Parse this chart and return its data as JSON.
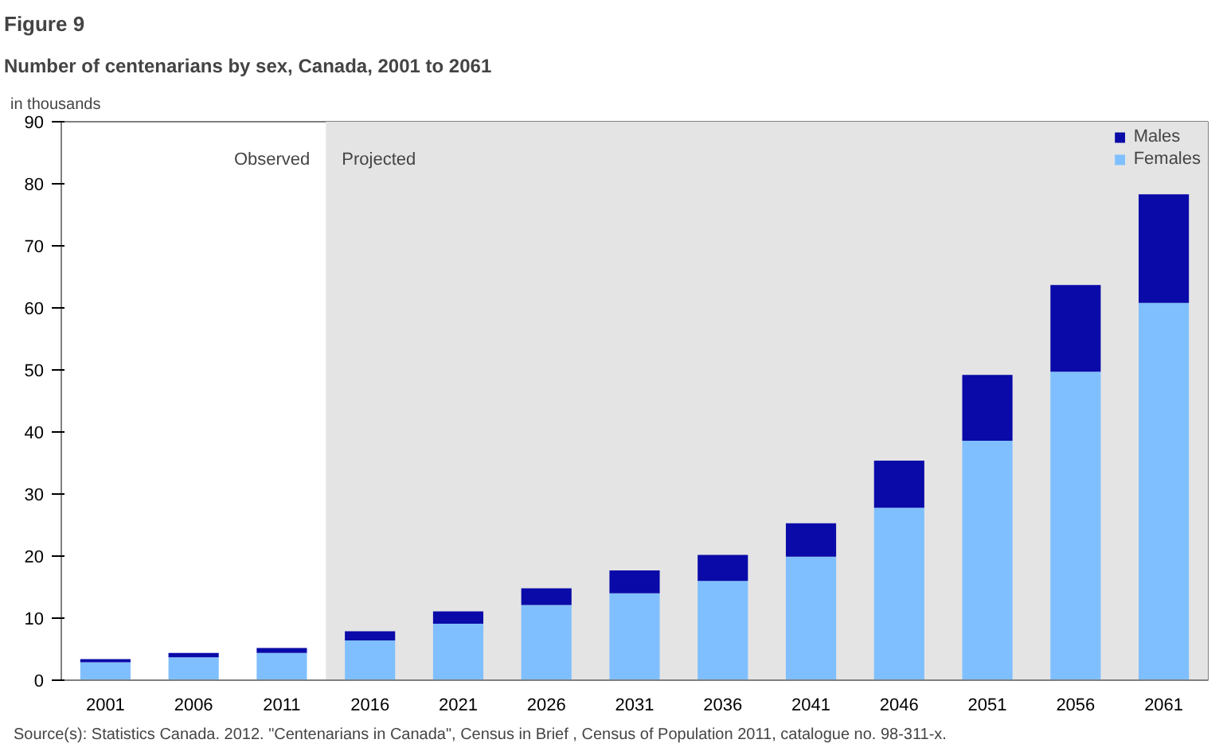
{
  "chart_data": {
    "type": "bar",
    "title": "Figure 9",
    "subtitle": "Number of centenarians by sex, Canada, 2001 to 2061",
    "ylabel": "in thousands",
    "categories": [
      "2001",
      "2006",
      "2011",
      "2016",
      "2021",
      "2026",
      "2031",
      "2036",
      "2041",
      "2046",
      "2051",
      "2056",
      "2061"
    ],
    "stacked": true,
    "series": [
      {
        "name": "Females",
        "color": "#7fbfff",
        "values": [
          2.9,
          3.7,
          4.4,
          6.4,
          9.1,
          12.1,
          14.0,
          16.0,
          19.9,
          27.8,
          38.6,
          49.7,
          60.8
        ]
      },
      {
        "name": "Males",
        "color": "#0a0aa8",
        "values": [
          0.5,
          0.7,
          0.8,
          1.5,
          2.0,
          2.7,
          3.7,
          4.2,
          5.4,
          7.6,
          10.6,
          14.0,
          17.5
        ]
      }
    ],
    "ylim": [
      0,
      90
    ],
    "yticks": [
      0,
      10,
      20,
      30,
      40,
      50,
      60,
      70,
      80,
      90
    ],
    "grid": false,
    "legend": "top right",
    "bands": [
      {
        "axis": "x",
        "from": "2016",
        "to": "2061",
        "color": "#e4e4e4"
      }
    ],
    "annotations": [
      "Observed",
      "Projected",
      "Source(s): Statistics Canada. 2012. \"Centenarians in Canada\", Census in Brief , Census of Population 2011, catalogue no. 98-311-x."
    ]
  }
}
